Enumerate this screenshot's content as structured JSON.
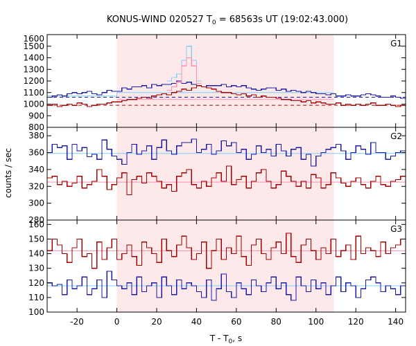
{
  "title": {
    "prefix": "KONUS-WIND 020527 T",
    "sub": "0",
    "suffix": " = 68563s UT (19:02:43.000)"
  },
  "xlabel": {
    "main": "T - T",
    "sub": "0",
    "unit": ", s"
  },
  "ylabel": "counts / sec",
  "colors": {
    "highlight": "#fde9ea",
    "blue": "#1a1aa8",
    "red": "#a50000",
    "light_blue": "#7fd0ff",
    "pink": "#ff8fb0"
  },
  "chart_data": {
    "type": "line",
    "x_range": [
      -35,
      145
    ],
    "x_ticks": [
      -20,
      0,
      20,
      40,
      60,
      80,
      100,
      120,
      140
    ],
    "highlight_interval": [
      0,
      109
    ],
    "panels": [
      {
        "name": "G1",
        "ylim": [
          800,
          1600
        ],
        "y_ticks": [
          800,
          900,
          1000,
          1100,
          1200,
          1300,
          1400,
          1500,
          1600
        ],
        "background_levels": [
          {
            "color": "blue",
            "value": 1060,
            "style": "dashed"
          },
          {
            "color": "red",
            "value": 990,
            "style": "dashed"
          }
        ],
        "fit_levels": [
          {
            "color": "light_blue",
            "segments": [
              [
                -35,
                1070
              ],
              [
                0,
                1100
              ],
              [
                109,
                1110
              ]
            ]
          },
          {
            "color": "pink",
            "segments": [
              [
                0,
                1040
              ],
              [
                109,
                1050
              ]
            ]
          }
        ],
        "series": [
          {
            "color": "blue",
            "x_start": -35,
            "bin": 2.5,
            "values": [
              1060,
              1070,
              1080,
              1070,
              1090,
              1100,
              1090,
              1100,
              1110,
              1090,
              1080,
              1100,
              1120,
              1110,
              1110,
              1140,
              1130,
              1150,
              1150,
              1160,
              1140,
              1170,
              1160,
              1170,
              1170,
              1180,
              1200,
              1180,
              1190,
              1170,
              1160,
              1150,
              1160,
              1160,
              1160,
              1170,
              1150,
              1160,
              1150,
              1160,
              1140,
              1130,
              1120,
              1130,
              1140,
              1140,
              1120,
              1130,
              1110,
              1120,
              1110,
              1100,
              1110,
              1100,
              1090,
              1090,
              1080,
              1090,
              1070,
              1070,
              1080,
              1070,
              1070,
              1080,
              1090,
              1080,
              1070,
              1060,
              1060,
              1070,
              1060,
              1050
            ]
          },
          {
            "color": "red",
            "x_start": -35,
            "bin": 2.5,
            "values": [
              990,
              1000,
              980,
              990,
              1000,
              990,
              1010,
              1000,
              980,
              990,
              1000,
              1000,
              1010,
              1020,
              1020,
              1030,
              1040,
              1040,
              1050,
              1060,
              1050,
              1070,
              1080,
              1090,
              1080,
              1100,
              1110,
              1130,
              1120,
              1140,
              1160,
              1150,
              1140,
              1130,
              1110,
              1100,
              1100,
              1090,
              1080,
              1090,
              1070,
              1080,
              1060,
              1070,
              1060,
              1060,
              1050,
              1040,
              1040,
              1030,
              1030,
              1020,
              1030,
              1010,
              1020,
              1010,
              1000,
              1000,
              1010,
              990,
              1000,
              990,
              1000,
              990,
              1000,
              1010,
              990,
              990,
              1000,
              990,
              980,
              990
            ]
          },
          {
            "color": "light_blue",
            "x_start": 25,
            "bin": 2.5,
            "values": [
              1200,
              1230,
              1260,
              1380,
              1500,
              1380,
              1200
            ]
          },
          {
            "color": "pink",
            "x_start": 25,
            "bin": 2.5,
            "values": [
              1120,
              1150,
              1190,
              1330,
              1400,
              1330,
              1180
            ]
          }
        ]
      },
      {
        "name": "G2",
        "ylim": [
          280,
          390
        ],
        "y_ticks": [
          280,
          300,
          320,
          340,
          360,
          380
        ],
        "fit_levels": [
          {
            "color": "light_blue",
            "segments": [
              [
                -35,
                359
              ],
              [
                145,
                359
              ]
            ]
          },
          {
            "color": "pink",
            "segments": [
              [
                -35,
                325
              ],
              [
                145,
                325
              ]
            ]
          }
        ],
        "series": [
          {
            "color": "blue",
            "x_start": -35,
            "bin": 2.5,
            "values": [
              360,
              370,
              366,
              368,
              352,
              370,
              362,
              366,
              355,
              358,
              352,
              375,
              364,
              356,
              352,
              346,
              360,
              370,
              358,
              362,
              368,
              352,
              366,
              375,
              362,
              358,
              368,
              372,
              372,
              376,
              360,
              364,
              370,
              358,
              362,
              374,
              368,
              372,
              360,
              364,
              352,
              358,
              368,
              360,
              364,
              356,
              370,
              362,
              356,
              364,
              366,
              352,
              358,
              344,
              356,
              360,
              364,
              366,
              370,
              362,
              352,
              360,
              368,
              364,
              358,
              372,
              360,
              360,
              352,
              356,
              360,
              362
            ]
          },
          {
            "color": "red",
            "x_start": -35,
            "bin": 2.5,
            "values": [
              330,
              332,
              322,
              326,
              320,
              324,
              332,
              318,
              322,
              326,
              340,
              332,
              316,
              322,
              330,
              336,
              310,
              328,
              332,
              324,
              336,
              332,
              326,
              318,
              322,
              314,
              332,
              336,
              340,
              322,
              318,
              326,
              320,
              330,
              336,
              326,
              344,
              322,
              328,
              332,
              318,
              326,
              336,
              340,
              326,
              318,
              322,
              338,
              332,
              326,
              320,
              326,
              318,
              334,
              330,
              318,
              322,
              336,
              330,
              324,
              320,
              326,
              330,
              322,
              318,
              326,
              332,
              322,
              320,
              326,
              328,
              332
            ]
          }
        ]
      },
      {
        "name": "G3",
        "ylim": [
          100,
          163
        ],
        "y_ticks": [
          100,
          110,
          120,
          130,
          140,
          150,
          160
        ],
        "fit_levels": [
          {
            "color": "light_blue",
            "segments": [
              [
                -35,
                118
              ],
              [
                145,
                118
              ]
            ]
          },
          {
            "color": "pink",
            "segments": [
              [
                -35,
                142
              ],
              [
                145,
                142
              ]
            ]
          }
        ],
        "series": [
          {
            "color": "blue",
            "x_start": -35,
            "bin": 2.5,
            "values": [
              120,
              118,
              119,
              112,
              122,
              116,
              118,
              124,
              112,
              116,
              122,
              110,
              128,
              122,
              118,
              116,
              120,
              112,
              124,
              114,
              118,
              120,
              110,
              124,
              118,
              112,
              122,
              116,
              120,
              118,
              114,
              110,
              122,
              108,
              116,
              126,
              114,
              110,
              120,
              116,
              112,
              122,
              118,
              114,
              120,
              124,
              116,
              120,
              112,
              108,
              124,
              118,
              114,
              122,
              116,
              120,
              112,
              118,
              124,
              114,
              120,
              118,
              110,
              116,
              122,
              124,
              120,
              114,
              118,
              116,
              112,
              118
            ]
          },
          {
            "color": "red",
            "x_start": -35,
            "bin": 2.5,
            "values": [
              142,
              150,
              146,
              140,
              134,
              144,
              150,
              138,
              140,
              130,
              148,
              136,
              144,
              150,
              136,
              140,
              146,
              138,
              132,
              148,
              144,
              140,
              134,
              150,
              142,
              138,
              146,
              152,
              144,
              136,
              140,
              148,
              130,
              142,
              150,
              136,
              144,
              140,
              152,
              138,
              132,
              146,
              150,
              140,
              136,
              144,
              148,
              140,
              154,
              138,
              134,
              146,
              150,
              142,
              136,
              144,
              140,
              150,
              138,
              142,
              146,
              136,
              152,
              140,
              144,
              142,
              138,
              148,
              140,
              144,
              146,
              150
            ]
          }
        ]
      }
    ]
  }
}
